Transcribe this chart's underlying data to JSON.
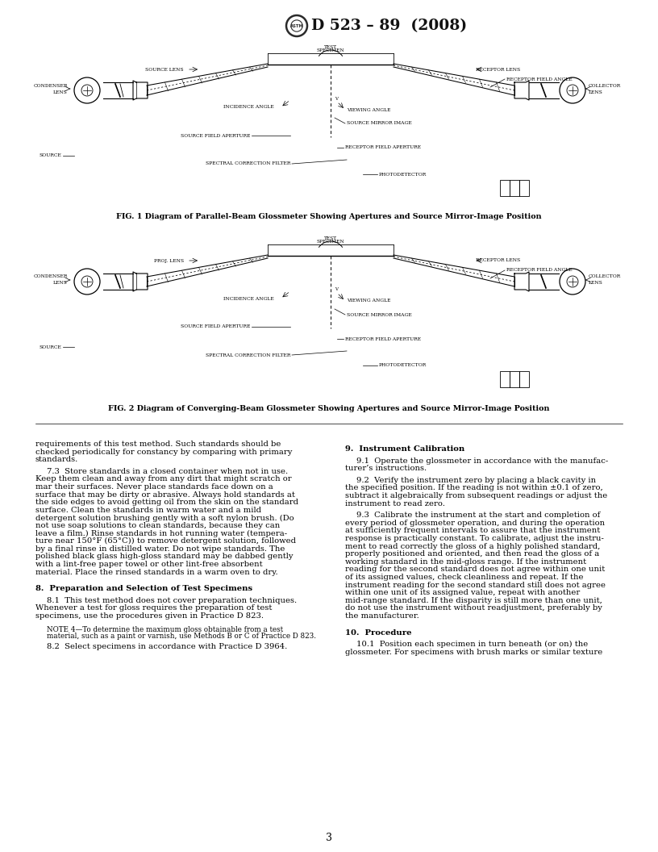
{
  "page_width": 8.16,
  "page_height": 10.56,
  "dpi": 100,
  "background": "#ffffff",
  "header_title": "D 523 – 89  (2008)",
  "page_number": "3",
  "fig1_caption": "FIG. 1 Diagram of Parallel-Beam Glossmeter Showing Apertures and Source Mirror-Image Position",
  "fig2_caption": "FIG. 2 Diagram of Converging-Beam Glossmeter Showing Apertures and Source Mirror-Image Position",
  "left_col_paragraphs": [
    {
      "type": "body",
      "lines": [
        "requirements of this test method. Such standards should be",
        "checked periodically for constancy by comparing with primary",
        "standards."
      ]
    },
    {
      "type": "body_indent",
      "lines": [
        "7.3  Store standards in a closed container when not in use.",
        "Keep them clean and away from any dirt that might scratch or",
        "mar their surfaces. Never place standards face down on a",
        "surface that may be dirty or abrasive. Always hold standards at",
        "the side edges to avoid getting oil from the skin on the standard",
        "surface. Clean the standards in warm water and a mild",
        "detergent solution brushing gently with a soft nylon brush. (Do",
        "not use soap solutions to clean standards, because they can",
        "leave a film.) Rinse standards in hot running water (tempera-",
        "ture near 150°F (65°C)) to remove detergent solution, followed",
        "by a final rinse in distilled water. Do not wipe standards. The",
        "polished black glass high-gloss standard may be dabbed gently",
        "with a lint-free paper towel or other lint-free absorbent",
        "material. Place the rinsed standards in a warm oven to dry."
      ]
    },
    {
      "type": "section_head",
      "lines": [
        "8.  Preparation and Selection of Test Specimens"
      ]
    },
    {
      "type": "body_indent",
      "lines": [
        "8.1  This test method does not cover preparation techniques.",
        "Whenever a test for gloss requires the preparation of test",
        "specimens, use the procedures given in Practice D 823."
      ]
    },
    {
      "type": "note",
      "lines": [
        "NOTE 4—To determine the maximum gloss obtainable from a test",
        "material, such as a paint or varnish, use Methods B or C of Practice D 823."
      ]
    },
    {
      "type": "body_indent",
      "lines": [
        "8.2  Select specimens in accordance with Practice D 3964."
      ]
    }
  ],
  "right_col_paragraphs": [
    {
      "type": "section_head",
      "lines": [
        "9.  Instrument Calibration"
      ]
    },
    {
      "type": "body_indent",
      "lines": [
        "9.1  Operate the glossmeter in accordance with the manufac-",
        "turer’s instructions."
      ]
    },
    {
      "type": "body_indent",
      "lines": [
        "9.2  Verify the instrument zero by placing a black cavity in",
        "the specified position. If the reading is not within ±0.1 of zero,",
        "subtract it algebraically from subsequent readings or adjust the",
        "instrument to read zero."
      ]
    },
    {
      "type": "body_indent",
      "lines": [
        "9.3  Calibrate the instrument at the start and completion of",
        "every period of glossmeter operation, and during the operation",
        "at sufficiently frequent intervals to assure that the instrument",
        "response is practically constant. To calibrate, adjust the instru-",
        "ment to read correctly the gloss of a highly polished standard,",
        "properly positioned and oriented, and then read the gloss of a",
        "working standard in the mid-gloss range. If the instrument",
        "reading for the second standard does not agree within one unit",
        "of its assigned values, check cleanliness and repeat. If the",
        "instrument reading for the second standard still does not agree",
        "within one unit of its assigned value, repeat with another",
        "mid-range standard. If the disparity is still more than one unit,",
        "do not use the instrument without readjustment, preferably by",
        "the manufacturer."
      ]
    },
    {
      "type": "section_head",
      "lines": [
        "10.  Procedure"
      ]
    },
    {
      "type": "body_indent",
      "lines": [
        "10.1  Position each specimen in turn beneath (or on) the",
        "glossmeter. For specimens with brush marks or similar texture"
      ]
    }
  ]
}
